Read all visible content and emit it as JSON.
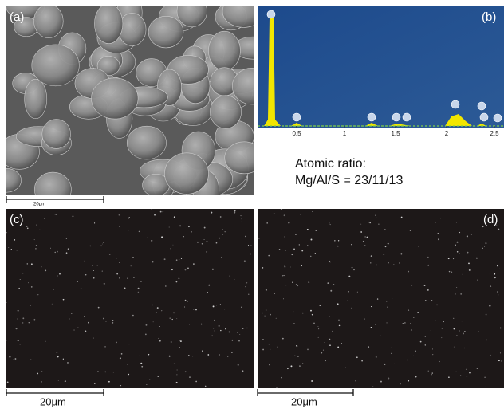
{
  "panels": {
    "a": {
      "label": "(a)",
      "scale_bar": "20μm"
    },
    "b": {
      "label": "(b)",
      "spectrum_ticks": [
        "0.5",
        "1",
        "1.5",
        "2",
        "2.5"
      ],
      "ratio_title": "Atomic ratio:",
      "ratio": "Mg/Al/S = 23/11/13"
    },
    "c": {
      "label": "(c)",
      "scale_bar": "20μm"
    },
    "d": {
      "label": "(d)",
      "scale_bar": "20μm"
    }
  }
}
